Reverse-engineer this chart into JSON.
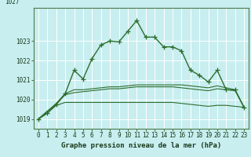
{
  "xlabel": "Graphe pression niveau de la mer (hPa)",
  "background_color": "#c8eef0",
  "grid_color": "#a8d8da",
  "line_color": "#2d6e2d",
  "hours": [
    0,
    1,
    2,
    3,
    4,
    5,
    6,
    7,
    8,
    9,
    10,
    11,
    12,
    13,
    14,
    15,
    16,
    17,
    18,
    19,
    20,
    21,
    22,
    23
  ],
  "main_line": [
    1019.0,
    1019.3,
    1019.75,
    1020.3,
    1021.5,
    1021.05,
    1022.1,
    1022.8,
    1023.0,
    1022.95,
    1023.5,
    1024.05,
    1023.2,
    1023.2,
    1022.7,
    1022.7,
    1022.5,
    1021.5,
    1021.25,
    1020.9,
    1021.5,
    1020.5,
    1020.5,
    1019.6
  ],
  "line_avg": [
    1019.0,
    1019.4,
    1019.75,
    1020.25,
    1020.35,
    1020.4,
    1020.45,
    1020.5,
    1020.55,
    1020.55,
    1020.6,
    1020.65,
    1020.65,
    1020.65,
    1020.65,
    1020.65,
    1020.6,
    1020.55,
    1020.5,
    1020.45,
    1020.55,
    1020.5,
    1020.45,
    1019.6
  ],
  "line_min": [
    1019.0,
    1019.3,
    1019.7,
    1019.85,
    1019.85,
    1019.85,
    1019.85,
    1019.85,
    1019.85,
    1019.85,
    1019.85,
    1019.85,
    1019.85,
    1019.85,
    1019.85,
    1019.85,
    1019.8,
    1019.75,
    1019.7,
    1019.65,
    1019.7,
    1019.7,
    1019.65,
    1019.6
  ],
  "line_max": [
    1019.0,
    1019.4,
    1019.8,
    1020.3,
    1020.5,
    1020.5,
    1020.55,
    1020.6,
    1020.65,
    1020.65,
    1020.7,
    1020.75,
    1020.75,
    1020.75,
    1020.75,
    1020.75,
    1020.75,
    1020.7,
    1020.65,
    1020.6,
    1020.7,
    1020.6,
    1020.5,
    1019.6
  ],
  "ylim": [
    1018.5,
    1024.7
  ],
  "yticks": [
    1019,
    1020,
    1021,
    1022,
    1023
  ],
  "ytop_label": "1027",
  "xticks": [
    0,
    1,
    2,
    3,
    4,
    5,
    6,
    7,
    8,
    9,
    10,
    11,
    12,
    13,
    14,
    15,
    16,
    17,
    18,
    19,
    20,
    21,
    22,
    23
  ],
  "marker": "+",
  "markersize": 4,
  "tick_fontsize": 5.5,
  "xlabel_fontsize": 6.5
}
